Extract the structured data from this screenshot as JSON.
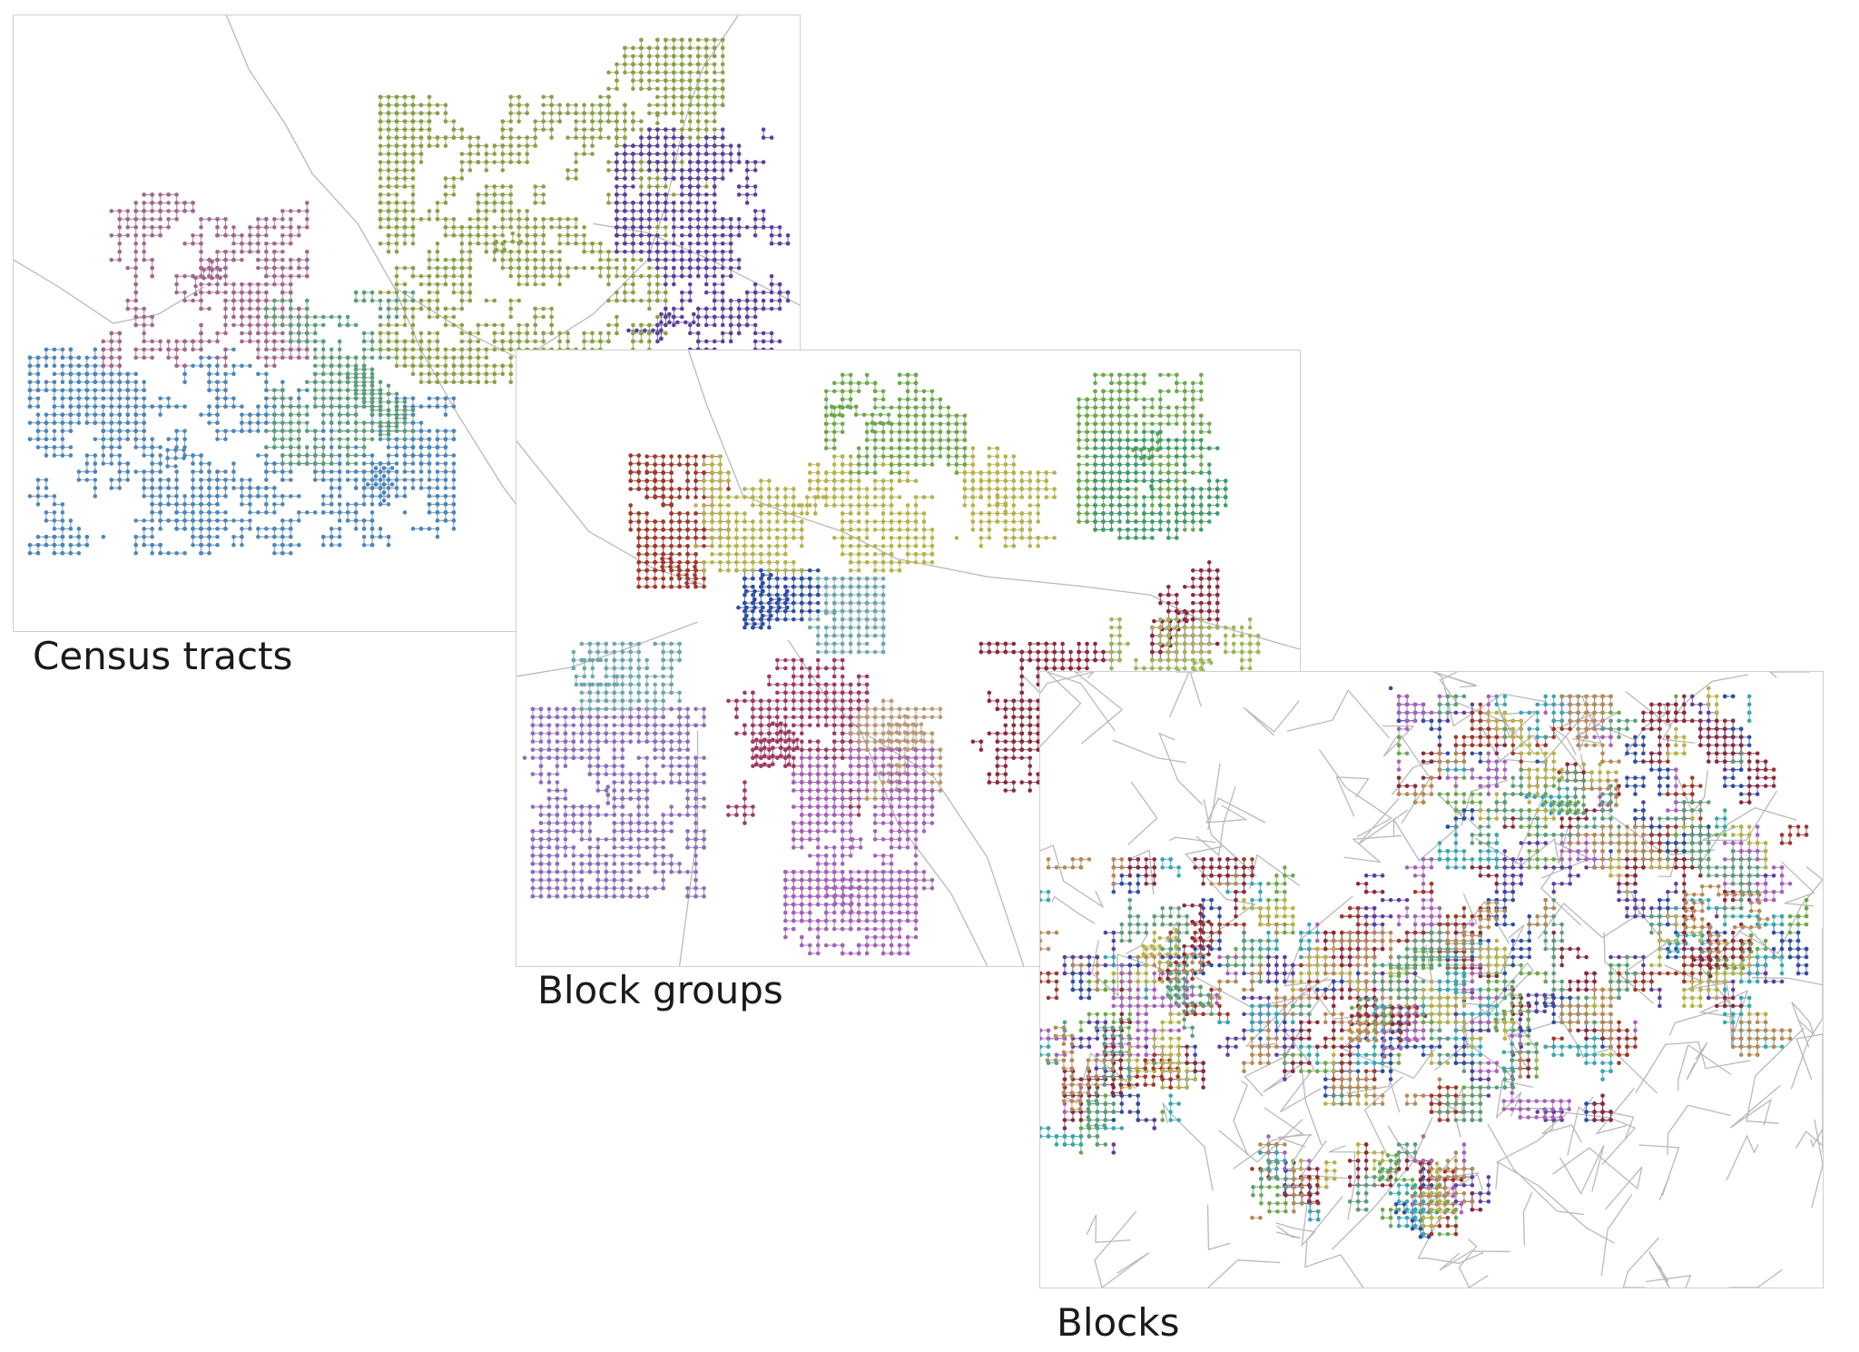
{
  "header_fragment": "",
  "panels": {
    "tracts": {
      "caption": "Census tracts",
      "clusters": [
        {
          "color": "#4f86b8"
        },
        {
          "color": "#a2688f"
        },
        {
          "color": "#5d9c7a"
        },
        {
          "color": "#8aa04a"
        },
        {
          "color": "#5b3f9c"
        }
      ]
    },
    "block_groups": {
      "caption": "Block groups",
      "clusters": [
        {
          "color": "#8d6dbc"
        },
        {
          "color": "#6fa6ad"
        },
        {
          "color": "#2e4ea0"
        },
        {
          "color": "#9c3b66"
        },
        {
          "color": "#b79a7a"
        },
        {
          "color": "#a463b8"
        },
        {
          "color": "#9c3a2c"
        },
        {
          "color": "#b6b24c"
        },
        {
          "color": "#6ba84e"
        },
        {
          "color": "#8a2b3e"
        },
        {
          "color": "#9eb45e"
        },
        {
          "color": "#3f9c6a"
        }
      ]
    },
    "blocks": {
      "caption": "Blocks",
      "palette": [
        "#5b3f9c",
        "#6ba84e",
        "#2e4ea0",
        "#a463b8",
        "#9c3a2c",
        "#3aa6b0",
        "#b6b24c",
        "#8a2b3e",
        "#5d9c7a",
        "#b48a5a"
      ]
    }
  }
}
